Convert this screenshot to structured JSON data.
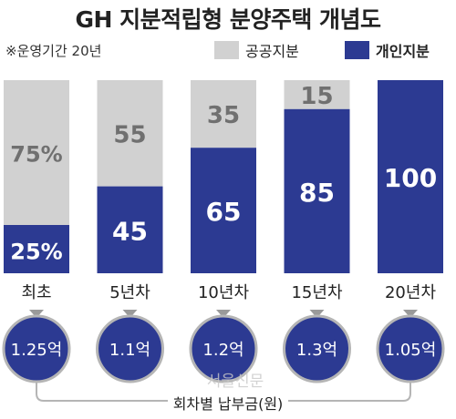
{
  "title": "GH 지분적립형 분양주택 개념도",
  "subtitle": "※운영기간 20년",
  "legend": [
    {
      "label": "공공지분",
      "color": "#d1d1d1"
    },
    {
      "label": "개인지분",
      "color": "#2c3a92"
    }
  ],
  "colors": {
    "public": "#d1d1d1",
    "private": "#2c3a92",
    "public_text": "#707070",
    "private_text": "#ffffff"
  },
  "chart_data": {
    "type": "bar",
    "stacked": true,
    "title": "GH 지분적립형 분양주택 개념도",
    "categories": [
      "최초",
      "5년차",
      "10년차",
      "15년차",
      "20년차"
    ],
    "series": [
      {
        "name": "개인지분",
        "values": [
          25,
          45,
          65,
          85,
          100
        ],
        "labels": [
          "25%",
          "45",
          "65",
          "85",
          "100"
        ]
      },
      {
        "name": "공공지분",
        "values": [
          75,
          55,
          35,
          15,
          0
        ],
        "labels": [
          "75%",
          "55",
          "35",
          "15",
          ""
        ]
      }
    ],
    "ylim": [
      0,
      100
    ],
    "grid": false,
    "legend_position": "top-right"
  },
  "payments": {
    "label": "회차별 납부금(원)",
    "values": [
      "1.25억",
      "1.1억",
      "1.2억",
      "1.3억",
      "1.05억"
    ]
  },
  "watermark": "서울신문"
}
